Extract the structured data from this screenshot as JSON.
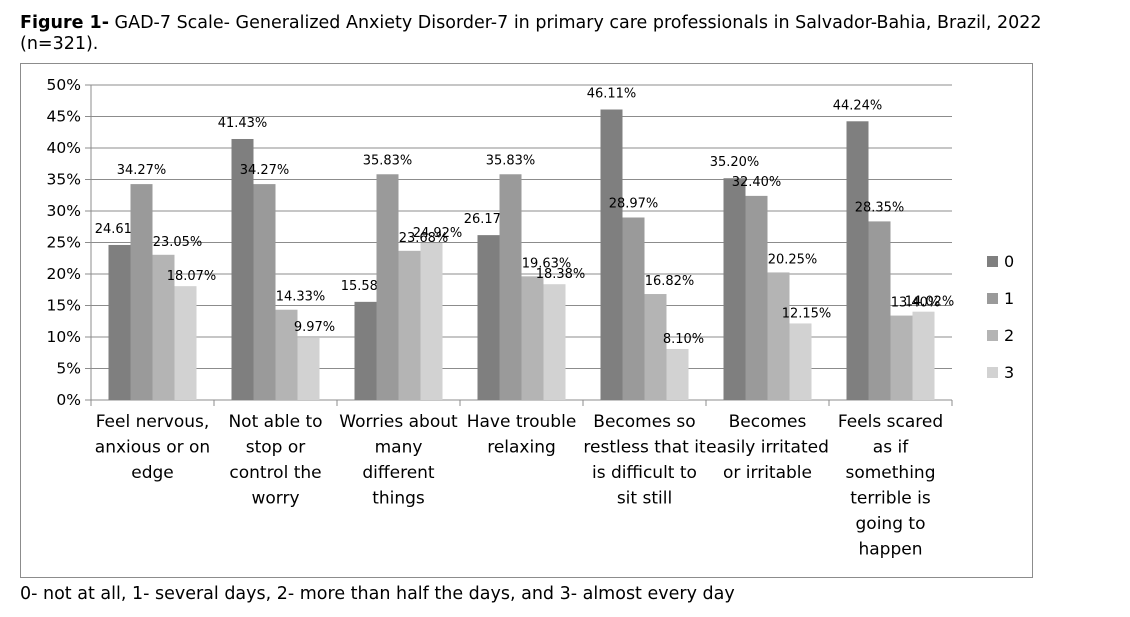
{
  "title": {
    "prefix": "Figure 1-",
    "text": " GAD-7 Scale- Generalized Anxiety Disorder-7  in primary care professionals in Salvador-Bahia, Brazil, 2022 (n=321)."
  },
  "footnote": "0- not at all, 1- several days, 2- more than half the days, and 3- almost every day",
  "chart_data": {
    "type": "bar",
    "title": "",
    "xlabel": "",
    "ylabel": "",
    "ylim": [
      0,
      50
    ],
    "yticks": [
      "0%",
      "5%",
      "10%",
      "15%",
      "20%",
      "25%",
      "30%",
      "35%",
      "40%",
      "45%",
      "50%"
    ],
    "grid": true,
    "legend_position": "right",
    "categories": [
      [
        "Feel nervous,",
        "anxious or on",
        "edge"
      ],
      [
        "Not able to",
        "stop or",
        "control the",
        "worry"
      ],
      [
        "Worries about",
        "many",
        "different",
        "things"
      ],
      [
        "Have trouble",
        "relaxing"
      ],
      [
        "Becomes so",
        "restless that it",
        "is difficult to",
        "sit still"
      ],
      [
        "Becomes",
        "easily irritated",
        "or irritable"
      ],
      [
        "Feels scared",
        "as if",
        "something",
        "terrible is",
        "going to",
        "happen"
      ]
    ],
    "series": [
      {
        "name": "0",
        "color": "#7f7f7f",
        "values": [
          24.61,
          41.43,
          15.58,
          26.17,
          46.11,
          35.2,
          44.24
        ],
        "labels": [
          "24.61%",
          "41.43%",
          "15.58%",
          "26.17%",
          "46.11%",
          "35.20%",
          "44.24%"
        ]
      },
      {
        "name": "1",
        "color": "#9a9a9a",
        "values": [
          34.27,
          34.27,
          35.83,
          35.83,
          28.97,
          32.4,
          28.35
        ],
        "labels": [
          "34.27%",
          "34.27%",
          "35.83%",
          "35.83%",
          "28.97%",
          "32.40%",
          "28.35%"
        ]
      },
      {
        "name": "2",
        "color": "#b4b4b4",
        "values": [
          23.05,
          14.33,
          23.68,
          19.63,
          16.82,
          20.25,
          13.4
        ],
        "labels": [
          "23.05%",
          "14.33%",
          "23.68%",
          "19.63%",
          "16.82%",
          "20.25%",
          "13.40%"
        ]
      },
      {
        "name": "3",
        "color": "#d2d2d2",
        "values": [
          18.07,
          9.97,
          24.92,
          18.38,
          8.1,
          12.15,
          14.02
        ],
        "labels": [
          "18.07%",
          "9.97%",
          "24.92%",
          "18.38%",
          "8.10%",
          "12.15%",
          "14.02%"
        ]
      }
    ]
  }
}
